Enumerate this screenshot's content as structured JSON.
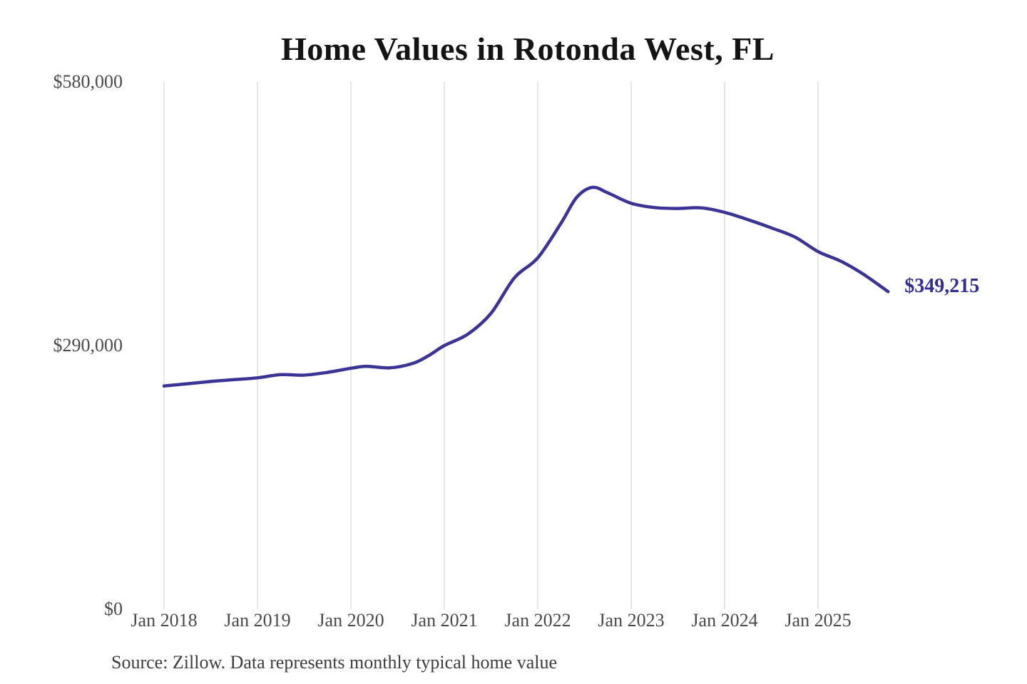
{
  "page": {
    "title": "Home Values in Rotonda West, FL",
    "source_note": "Source: Zillow. Data represents monthly typical home value"
  },
  "colors": {
    "line": "#3a3496",
    "end_label": "#322c96",
    "grid": "#cccccc",
    "tick_text": "#4a4a4a",
    "title_text": "#141414",
    "source_text": "#3d3d3d",
    "background": "#ffffff"
  },
  "axes": {
    "y_ticks": [
      {
        "label": "$580,000",
        "value": 580000
      },
      {
        "label": "$290,000",
        "value": 290000
      },
      {
        "label": "$0",
        "value": 0
      }
    ],
    "x_ticks": [
      "Jan 2018",
      "Jan 2019",
      "Jan 2020",
      "Jan 2021",
      "Jan 2022",
      "Jan 2023",
      "Jan 2024",
      "Jan 2025"
    ]
  },
  "end_label": {
    "text": "$349,215"
  },
  "chart_data": {
    "type": "line",
    "title": "Home Values in Rotonda West, FL",
    "xlabel": "",
    "ylabel": "",
    "ylim": [
      0,
      580000
    ],
    "x_range": [
      "2018-01",
      "2025-10"
    ],
    "grid": "vertical-only",
    "legend": "none",
    "annotation_last_value": "$349,215",
    "series": [
      {
        "name": "Monthly typical home value",
        "points": [
          {
            "date": "2018-01",
            "value": 245500
          },
          {
            "date": "2018-04",
            "value": 248000
          },
          {
            "date": "2018-07",
            "value": 250500
          },
          {
            "date": "2018-10",
            "value": 252500
          },
          {
            "date": "2019-01",
            "value": 254500
          },
          {
            "date": "2019-04",
            "value": 258000
          },
          {
            "date": "2019-07",
            "value": 257500
          },
          {
            "date": "2019-10",
            "value": 260500
          },
          {
            "date": "2020-01",
            "value": 265000
          },
          {
            "date": "2020-03",
            "value": 267200
          },
          {
            "date": "2020-06",
            "value": 265500
          },
          {
            "date": "2020-09",
            "value": 270500
          },
          {
            "date": "2020-11",
            "value": 279000
          },
          {
            "date": "2021-01",
            "value": 290000
          },
          {
            "date": "2021-04",
            "value": 302500
          },
          {
            "date": "2021-07",
            "value": 325500
          },
          {
            "date": "2021-10",
            "value": 364500
          },
          {
            "date": "2022-01",
            "value": 386500
          },
          {
            "date": "2022-04",
            "value": 424800
          },
          {
            "date": "2022-06",
            "value": 453000
          },
          {
            "date": "2022-08",
            "value": 464000
          },
          {
            "date": "2022-10",
            "value": 458000
          },
          {
            "date": "2023-01",
            "value": 446500
          },
          {
            "date": "2023-04",
            "value": 441800
          },
          {
            "date": "2023-07",
            "value": 440800
          },
          {
            "date": "2023-10",
            "value": 441500
          },
          {
            "date": "2024-01",
            "value": 436600
          },
          {
            "date": "2024-04",
            "value": 428500
          },
          {
            "date": "2024-07",
            "value": 419500
          },
          {
            "date": "2024-10",
            "value": 409500
          },
          {
            "date": "2025-01",
            "value": 393400
          },
          {
            "date": "2025-04",
            "value": 382500
          },
          {
            "date": "2025-07",
            "value": 367500
          },
          {
            "date": "2025-10",
            "value": 349215
          }
        ]
      }
    ]
  }
}
